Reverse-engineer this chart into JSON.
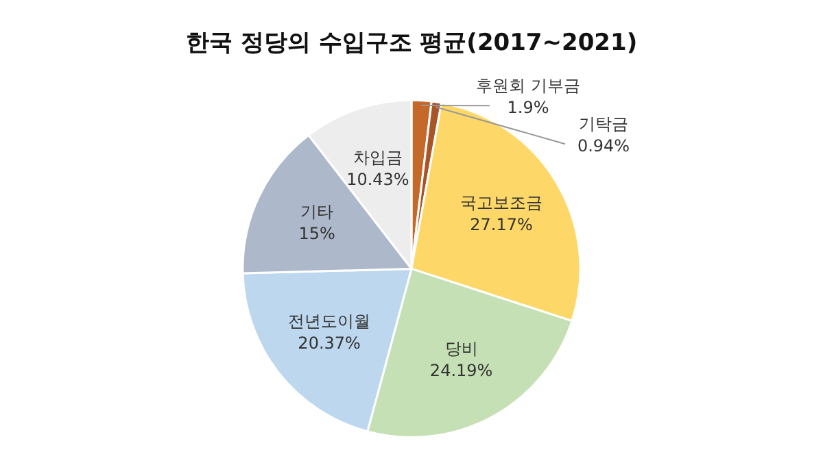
{
  "chart_data": {
    "type": "pie",
    "title": "한국 정당의 수입구조 평균(2017~2021)",
    "categories": [
      "후원회 기부금",
      "기탁금",
      "국고보조금",
      "당비",
      "전년도이월",
      "기타",
      "차입금"
    ],
    "values": [
      1.9,
      0.94,
      27.17,
      24.19,
      20.37,
      15,
      10.43
    ],
    "colors": [
      "#c5692b",
      "#a9552a",
      "#fdd868",
      "#c5e0b4",
      "#bdd7ee",
      "#adb9ca",
      "#ededed"
    ],
    "value_labels": [
      "1.9%",
      "0.94%",
      "27.17%",
      "24.19%",
      "20.37%",
      "15%",
      "10.43%"
    ],
    "legend": false
  }
}
